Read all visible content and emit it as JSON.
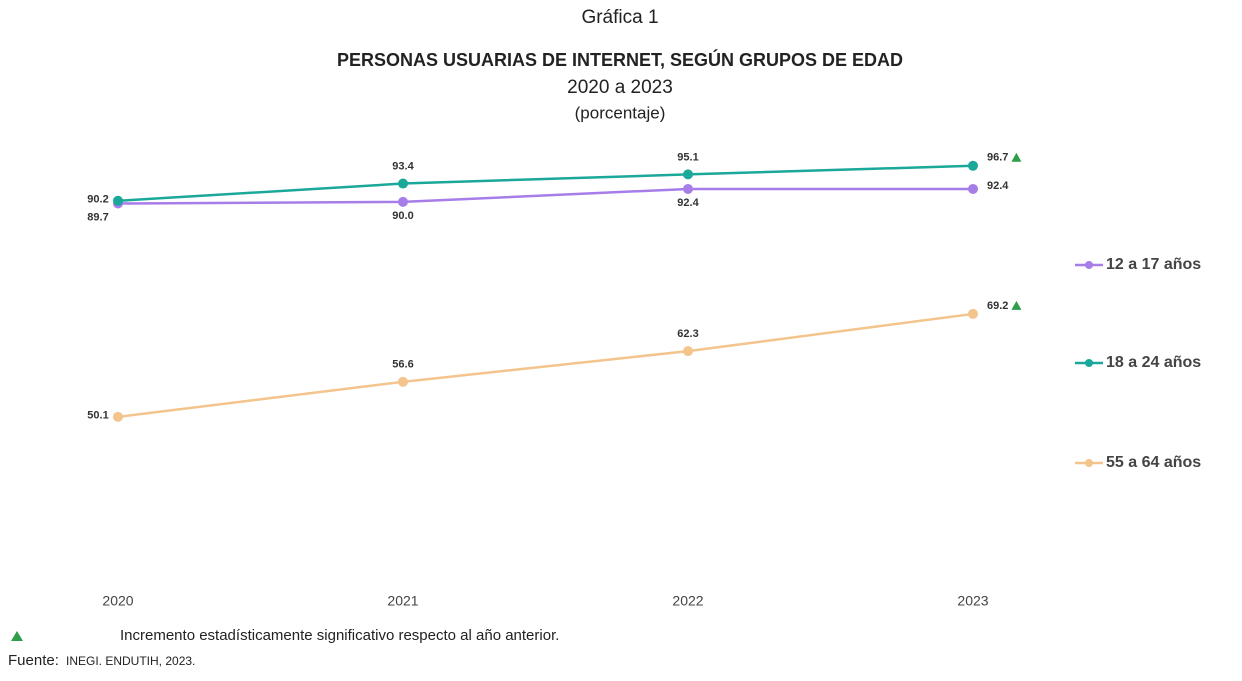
{
  "chart_data": {
    "type": "line",
    "header": "Gráfica 1",
    "title": "PERSONAS USUARIAS DE INTERNET, SEGÚN GRUPOS DE EDAD",
    "subtitle": "2020 a 2023",
    "unit_note": "(porcentaje)",
    "categories": [
      "2020",
      "2021",
      "2022",
      "2023"
    ],
    "series": [
      {
        "name": "12 a 17 años",
        "color": "#a77de8",
        "values": [
          89.7,
          90.0,
          92.4,
          92.4
        ],
        "value_labels": [
          "89.7",
          "90.0",
          "92.4",
          "92.4"
        ],
        "significant": [
          false,
          false,
          false,
          false
        ]
      },
      {
        "name": "18 a 24 años",
        "color": "#1aa89a",
        "values": [
          90.2,
          93.4,
          95.1,
          96.7
        ],
        "significant": [
          false,
          false,
          false,
          true
        ]
      },
      {
        "name": "55 a 64 años",
        "color": "#f3c48b",
        "values": [
          50.1,
          56.6,
          62.3,
          69.2
        ],
        "significant": [
          false,
          false,
          false,
          true
        ]
      }
    ],
    "ylim": [
      20,
      100
    ],
    "significance_color": "#2e9e4a",
    "footnote": "Incremento estadísticamente significativo respecto al año anterior.",
    "source_label": "Fuente:",
    "source": "INEGI. ENDUTIH, 2023."
  }
}
